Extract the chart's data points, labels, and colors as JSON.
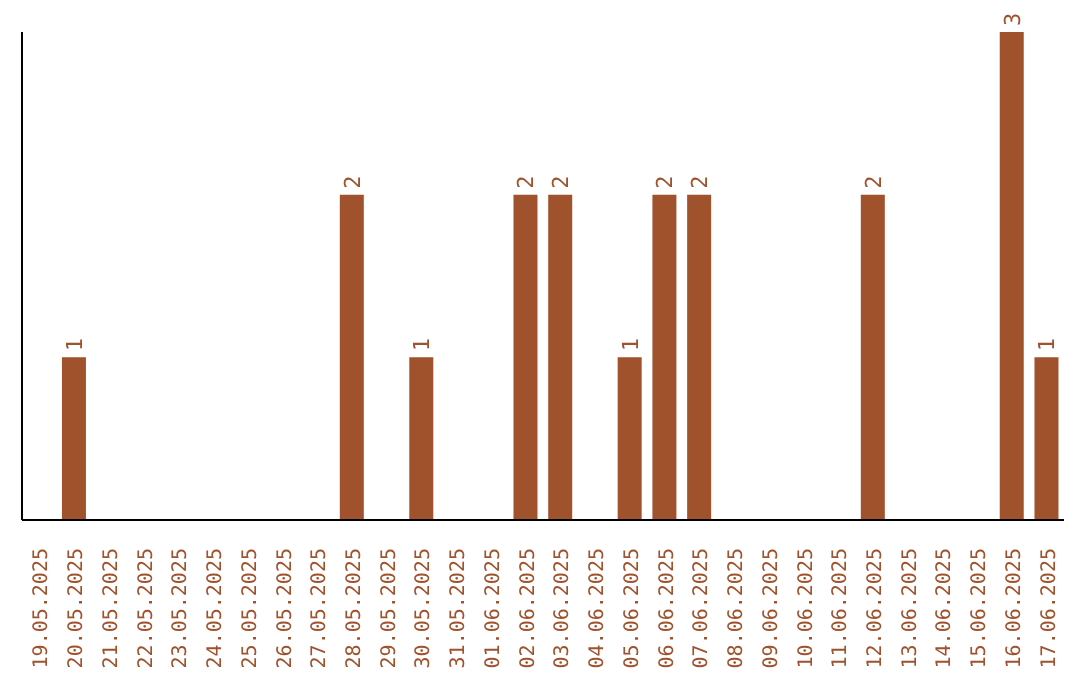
{
  "chart_data": {
    "type": "bar",
    "categories": [
      "19.05.2025",
      "20.05.2025",
      "21.05.2025",
      "22.05.2025",
      "23.05.2025",
      "24.05.2025",
      "25.05.2025",
      "26.05.2025",
      "27.05.2025",
      "28.05.2025",
      "29.05.2025",
      "30.05.2025",
      "31.05.2025",
      "01.06.2025",
      "02.06.2025",
      "03.06.2025",
      "04.06.2025",
      "05.06.2025",
      "06.06.2025",
      "07.06.2025",
      "08.06.2025",
      "09.06.2025",
      "10.06.2025",
      "11.06.2025",
      "12.06.2025",
      "13.06.2025",
      "14.06.2025",
      "15.06.2025",
      "16.06.2025",
      "17.06.2025"
    ],
    "values": [
      0,
      1,
      0,
      0,
      0,
      0,
      0,
      0,
      0,
      2,
      0,
      1,
      0,
      0,
      2,
      2,
      0,
      1,
      2,
      2,
      0,
      0,
      0,
      0,
      2,
      0,
      0,
      0,
      3,
      1
    ],
    "value_labels": [
      null,
      "1",
      null,
      null,
      null,
      null,
      null,
      null,
      null,
      "2",
      null,
      "1",
      null,
      null,
      "2",
      "2",
      null,
      "1",
      "2",
      "2",
      null,
      null,
      null,
      null,
      "2",
      null,
      null,
      null,
      "3",
      "1"
    ],
    "color": "#a0522d",
    "tick_labels": "x",
    "grid": false,
    "legend": false
  }
}
